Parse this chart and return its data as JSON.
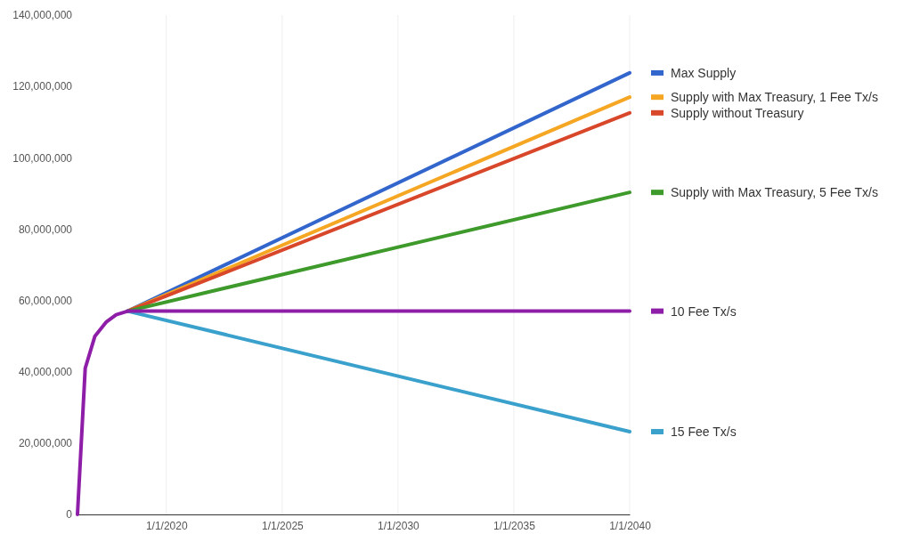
{
  "chart_data": {
    "type": "line",
    "x": [
      "2016-03-01",
      "2016-07-01",
      "2016-12-01",
      "2017-06-01",
      "2017-11-01",
      "2018-05-01",
      "2040-01-01"
    ],
    "series": [
      {
        "name": "Max Supply",
        "color": "#3366cc",
        "values": [
          null,
          null,
          null,
          null,
          null,
          57000000,
          123800000
        ]
      },
      {
        "name": "Supply with Max Treasury, 1 Fee Tx/s",
        "color": "#f5a623",
        "values": [
          null,
          null,
          null,
          null,
          null,
          57000000,
          117000000
        ]
      },
      {
        "name": "Supply without Treasury",
        "color": "#d9472b",
        "values": [
          null,
          null,
          null,
          null,
          null,
          57000000,
          112600000
        ]
      },
      {
        "name": "Supply with Max Treasury, 5 Fee Tx/s",
        "color": "#3d9a2b",
        "values": [
          null,
          null,
          null,
          null,
          null,
          57000000,
          90300000
        ]
      },
      {
        "name": "15 Fee Tx/s",
        "color": "#3aa0cc",
        "values": [
          null,
          null,
          null,
          null,
          null,
          57000000,
          23200000
        ]
      },
      {
        "name": "10 Fee Tx/s",
        "color": "#8e1ea8",
        "values": [
          0,
          41000000,
          50000000,
          54000000,
          56000000,
          57000000,
          57000000
        ]
      }
    ],
    "xlim": [
      "2016-03-01",
      "2040-01-01"
    ],
    "xticks": [
      {
        "value": "2020-01-01",
        "label": "1/1/2020"
      },
      {
        "value": "2025-01-01",
        "label": "1/1/2025"
      },
      {
        "value": "2030-01-01",
        "label": "1/1/2030"
      },
      {
        "value": "2035-01-01",
        "label": "1/1/2035"
      },
      {
        "value": "2040-01-01",
        "label": "1/1/2040"
      }
    ],
    "ylim": [
      0,
      140000000
    ],
    "yticks": [
      {
        "value": 0,
        "label": "0"
      },
      {
        "value": 20000000,
        "label": "20,000,000"
      },
      {
        "value": 40000000,
        "label": "40,000,000"
      },
      {
        "value": 60000000,
        "label": "60,000,000"
      },
      {
        "value": 80000000,
        "label": "80,000,000"
      },
      {
        "value": 100000000,
        "label": "100,000,000"
      },
      {
        "value": 120000000,
        "label": "120,000,000"
      },
      {
        "value": 140000000,
        "label": "140,000,000"
      }
    ],
    "grid": "x",
    "legend": "right",
    "marker": "none",
    "line_style": "solid"
  }
}
